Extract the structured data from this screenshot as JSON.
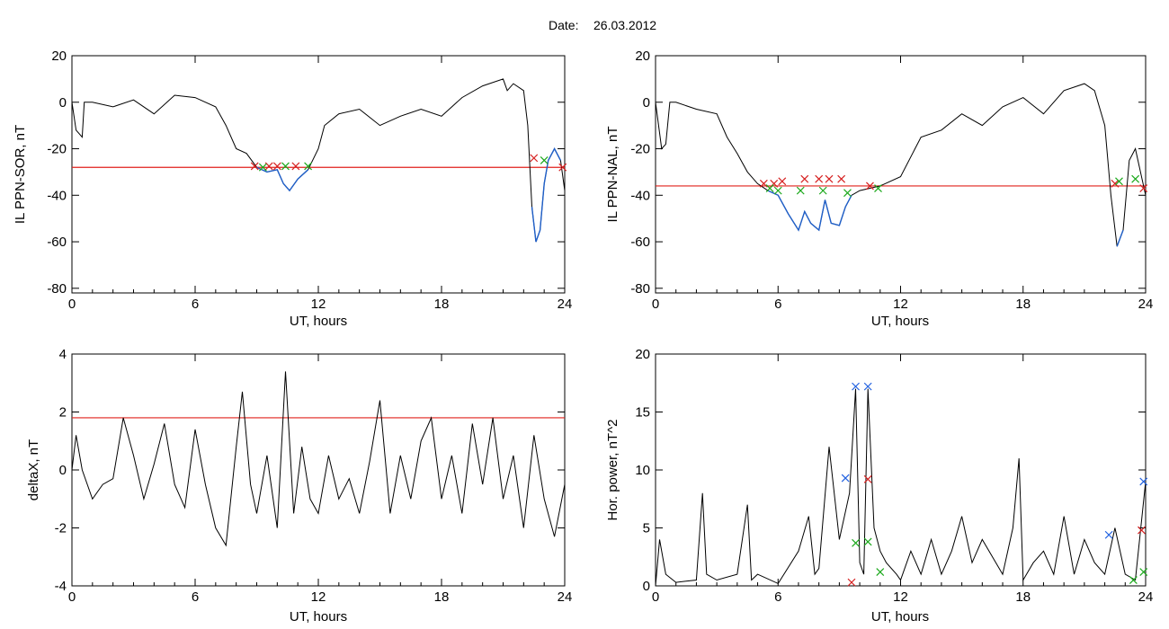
{
  "page": {
    "date_label": "Date:",
    "date_value": "26.03.2012"
  },
  "colors": {
    "line": "#000000",
    "threshold": "#e0201b",
    "highlight": "#1f5fc8",
    "marker_red": "#d62020",
    "marker_green": "#1aa81a",
    "marker_blue": "#2060e0"
  },
  "chart_data": [
    {
      "id": "p1",
      "type": "line",
      "xlabel": "UT, hours",
      "ylabel": "IL PPN-SOR, nT",
      "xlim": [
        0,
        24
      ],
      "ylim": [
        -82,
        20
      ],
      "xticks": [
        0,
        6,
        12,
        18,
        24
      ],
      "yticks": [
        -80,
        -60,
        -40,
        -20,
        0,
        20
      ],
      "threshold": -28,
      "series": [
        {
          "x": [
            0,
            0.2,
            0.5,
            0.6,
            1,
            2,
            3,
            4,
            5,
            6,
            7,
            7.5,
            8,
            8.5,
            9,
            9.5,
            10,
            10.3,
            10.6,
            11,
            11.5,
            12,
            12.3,
            13,
            14,
            15,
            16,
            17,
            18,
            19,
            20,
            21,
            21.2,
            21.5,
            22,
            22.2,
            22.4,
            22.6,
            22.8,
            23,
            23.2,
            23.5,
            23.8,
            24
          ],
          "y": [
            0,
            -12,
            -15,
            0,
            0,
            -2,
            1,
            -5,
            3,
            2,
            -2,
            -10,
            -20,
            -22,
            -28,
            -30,
            -29,
            -35,
            -38,
            -33,
            -29,
            -20,
            -10,
            -5,
            -3,
            -10,
            -6,
            -3,
            -6,
            2,
            7,
            10,
            5,
            8,
            5,
            -10,
            -45,
            -60,
            -55,
            -35,
            -25,
            -20,
            -25,
            -38
          ]
        }
      ],
      "highlight_ranges": [
        [
          9.0,
          11.6
        ],
        [
          22.3,
          23.8
        ]
      ],
      "markers_red": [
        [
          8.9,
          -27.5
        ],
        [
          9.6,
          -27.5
        ],
        [
          10.0,
          -27.5
        ],
        [
          10.9,
          -27.5
        ],
        [
          22.5,
          -24
        ],
        [
          23.9,
          -28
        ]
      ],
      "markers_green": [
        [
          9.3,
          -28
        ],
        [
          10.4,
          -27.5
        ],
        [
          11.5,
          -27.5
        ],
        [
          23.0,
          -25
        ]
      ]
    },
    {
      "id": "p2",
      "type": "line",
      "xlabel": "UT, hours",
      "ylabel": "IL PPN-NAL, nT",
      "xlim": [
        0,
        24
      ],
      "ylim": [
        -82,
        20
      ],
      "xticks": [
        0,
        6,
        12,
        18,
        24
      ],
      "yticks": [
        -80,
        -60,
        -40,
        -20,
        0,
        20
      ],
      "threshold": -36,
      "series": [
        {
          "x": [
            0,
            0.3,
            0.5,
            0.7,
            1,
            2,
            3,
            3.5,
            4,
            4.5,
            5,
            5.5,
            6,
            6.5,
            7,
            7.3,
            7.6,
            8,
            8.3,
            8.6,
            9,
            9.3,
            9.6,
            10,
            11,
            12,
            13,
            14,
            15,
            16,
            17,
            18,
            19,
            20,
            21,
            21.5,
            22,
            22.3,
            22.6,
            22.9,
            23.2,
            23.5,
            24
          ],
          "y": [
            0,
            -20,
            -18,
            0,
            0,
            -3,
            -5,
            -15,
            -22,
            -30,
            -35,
            -38,
            -40,
            -48,
            -55,
            -47,
            -52,
            -55,
            -42,
            -52,
            -53,
            -45,
            -40,
            -38,
            -36,
            -32,
            -15,
            -12,
            -5,
            -10,
            -2,
            2,
            -5,
            5,
            8,
            5,
            -10,
            -40,
            -62,
            -55,
            -25,
            -20,
            -40
          ]
        }
      ],
      "highlight_ranges": [
        [
          5.5,
          9.7
        ],
        [
          22.4,
          23.0
        ]
      ],
      "markers_red": [
        [
          5.3,
          -35
        ],
        [
          5.8,
          -35
        ],
        [
          6.2,
          -34
        ],
        [
          7.3,
          -33
        ],
        [
          8.0,
          -33
        ],
        [
          8.5,
          -33
        ],
        [
          9.1,
          -33
        ],
        [
          10.5,
          -36
        ],
        [
          22.5,
          -35
        ],
        [
          23.9,
          -37
        ]
      ],
      "markers_green": [
        [
          5.6,
          -37
        ],
        [
          6.0,
          -38
        ],
        [
          7.1,
          -38
        ],
        [
          8.2,
          -38
        ],
        [
          9.4,
          -39
        ],
        [
          10.9,
          -37
        ],
        [
          22.7,
          -34
        ],
        [
          23.5,
          -33
        ]
      ]
    },
    {
      "id": "p3",
      "type": "line",
      "xlabel": "UT, hours",
      "ylabel": "deltaX, nT",
      "xlim": [
        0,
        24
      ],
      "ylim": [
        -4,
        4
      ],
      "xticks": [
        0,
        6,
        12,
        18,
        24
      ],
      "yticks": [
        -4,
        -2,
        0,
        2,
        4
      ],
      "threshold": 1.8,
      "series": [
        {
          "x": [
            0,
            0.2,
            0.5,
            1,
            1.5,
            2,
            2.5,
            3,
            3.5,
            4,
            4.5,
            5,
            5.5,
            6,
            6.5,
            7,
            7.5,
            8,
            8.3,
            8.7,
            9,
            9.5,
            10,
            10.4,
            10.8,
            11.2,
            11.6,
            12,
            12.5,
            13,
            13.5,
            14,
            14.5,
            15,
            15.5,
            16,
            16.5,
            17,
            17.5,
            18,
            18.5,
            19,
            19.5,
            20,
            20.5,
            21,
            21.5,
            22,
            22.5,
            23,
            23.5,
            24
          ],
          "y": [
            0,
            1.2,
            0,
            -1,
            -0.5,
            -0.3,
            1.8,
            0.5,
            -1,
            0.2,
            1.6,
            -0.5,
            -1.3,
            1.4,
            -0.5,
            -2,
            -2.6,
            0.8,
            2.7,
            -0.5,
            -1.5,
            0.5,
            -2,
            3.4,
            -1.5,
            0.8,
            -1,
            -1.5,
            0.5,
            -1,
            -0.3,
            -1.5,
            0.3,
            2.4,
            -1.5,
            0.5,
            -1,
            1,
            1.8,
            -1,
            0.5,
            -1.5,
            1.6,
            -0.5,
            1.8,
            -1,
            0.5,
            -2,
            1.2,
            -1,
            -2.3,
            -0.5
          ]
        }
      ],
      "highlight_ranges": [],
      "markers_red": [],
      "markers_green": [],
      "markers_blue": []
    },
    {
      "id": "p4",
      "type": "line",
      "xlabel": "UT, hours",
      "ylabel": "Hor. power, nT^2",
      "xlim": [
        0,
        24
      ],
      "ylim": [
        0,
        20
      ],
      "xticks": [
        0,
        6,
        12,
        18,
        24
      ],
      "yticks": [
        0,
        5,
        10,
        15,
        20
      ],
      "threshold": null,
      "series": [
        {
          "x": [
            0,
            0.2,
            0.5,
            1,
            2,
            2.3,
            2.5,
            3,
            4,
            4.5,
            4.7,
            5,
            6,
            7,
            7.5,
            7.8,
            8,
            8.5,
            9,
            9.5,
            9.8,
            10,
            10.2,
            10.4,
            10.7,
            11,
            11.3,
            11.8,
            12,
            12.5,
            13,
            13.5,
            14,
            14.5,
            15,
            15.5,
            16,
            17,
            17.5,
            17.8,
            18,
            18.5,
            19,
            19.5,
            20,
            20.5,
            21,
            21.5,
            22,
            22.5,
            23,
            23.5,
            24
          ],
          "y": [
            0,
            4,
            1,
            0.3,
            0.5,
            8,
            1,
            0.5,
            1,
            7,
            0.5,
            1,
            0.2,
            3,
            6,
            1,
            1.5,
            12,
            4,
            8,
            17,
            2,
            1,
            17,
            5,
            3,
            2,
            1,
            0.5,
            3,
            1,
            4,
            1,
            3,
            6,
            2,
            4,
            1,
            5,
            11,
            0.5,
            2,
            3,
            1,
            6,
            1,
            4,
            2,
            1,
            5,
            1,
            0.5,
            9
          ]
        }
      ],
      "highlight_ranges": [],
      "markers_red": [
        [
          10.4,
          9.2
        ],
        [
          9.6,
          0.3
        ],
        [
          23.8,
          4.8
        ]
      ],
      "markers_green": [
        [
          9.8,
          3.7
        ],
        [
          10.4,
          3.8
        ],
        [
          11.0,
          1.2
        ],
        [
          23.4,
          0.5
        ],
        [
          23.9,
          1.2
        ]
      ],
      "markers_blue": [
        [
          9.3,
          9.3
        ],
        [
          9.8,
          17.2
        ],
        [
          10.4,
          17.2
        ],
        [
          22.2,
          4.4
        ],
        [
          23.9,
          9.0
        ]
      ]
    }
  ]
}
